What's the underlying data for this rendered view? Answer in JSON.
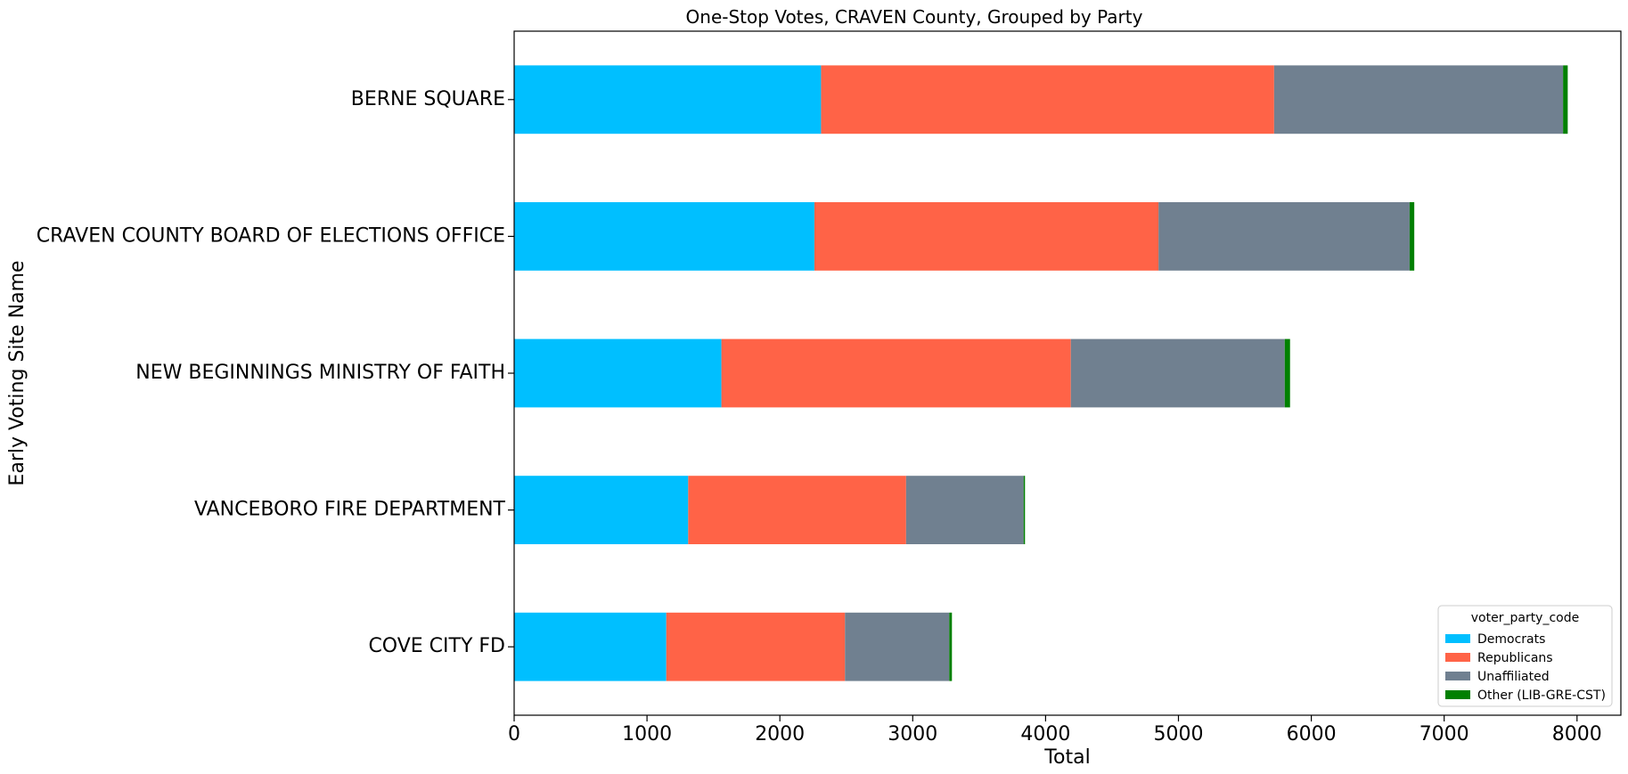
{
  "chart_data": {
    "type": "bar",
    "orientation": "horizontal",
    "stacked": true,
    "title": "One-Stop Votes, CRAVEN County, Grouped by Party",
    "xlabel": "Total",
    "ylabel": "Early Voting Site Name",
    "xlim": [
      0,
      8330
    ],
    "xticks": [
      0,
      1000,
      2000,
      3000,
      4000,
      5000,
      6000,
      7000,
      8000
    ],
    "grid": false,
    "legend": {
      "title": "voter_party_code",
      "position": "bottom-right"
    },
    "categories": [
      "BERNE  SQUARE",
      "CRAVEN COUNTY BOARD OF ELECTIONS OFFICE",
      "NEW BEGINNINGS MINISTRY OF FAITH",
      "VANCEBORO FIRE DEPARTMENT",
      "COVE CITY FD"
    ],
    "series": [
      {
        "name": "Democrats",
        "color": "#00bfff",
        "values": [
          2310,
          2260,
          1560,
          1310,
          1145
        ]
      },
      {
        "name": "Republicans",
        "color": "#ff6347",
        "values": [
          3410,
          2590,
          2630,
          1640,
          1345
        ]
      },
      {
        "name": "Unaffiliated",
        "color": "#708090",
        "values": [
          2175,
          1890,
          1610,
          885,
          785
        ]
      },
      {
        "name": "Other (LIB-GRE-CST)",
        "color": "#008000",
        "values": [
          35,
          35,
          40,
          10,
          20
        ]
      }
    ]
  }
}
